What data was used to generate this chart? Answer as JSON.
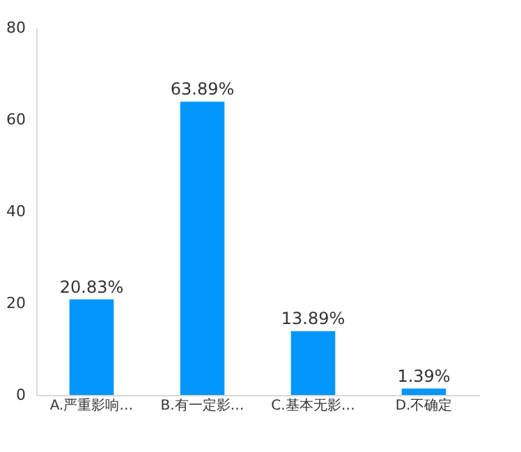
{
  "chart_data": {
    "type": "bar",
    "categories": [
      "A.严重影响…",
      "B.有一定影…",
      "C.基本无影…",
      "D.不确定"
    ],
    "values": [
      20.83,
      63.89,
      13.89,
      1.39
    ],
    "value_labels": [
      "20.83%",
      "63.89%",
      "13.89%",
      "1.39%"
    ],
    "color": "#0096fa",
    "ylim": [
      0,
      80
    ],
    "yticks": [
      0,
      20,
      40,
      60,
      80
    ],
    "grid": false
  }
}
